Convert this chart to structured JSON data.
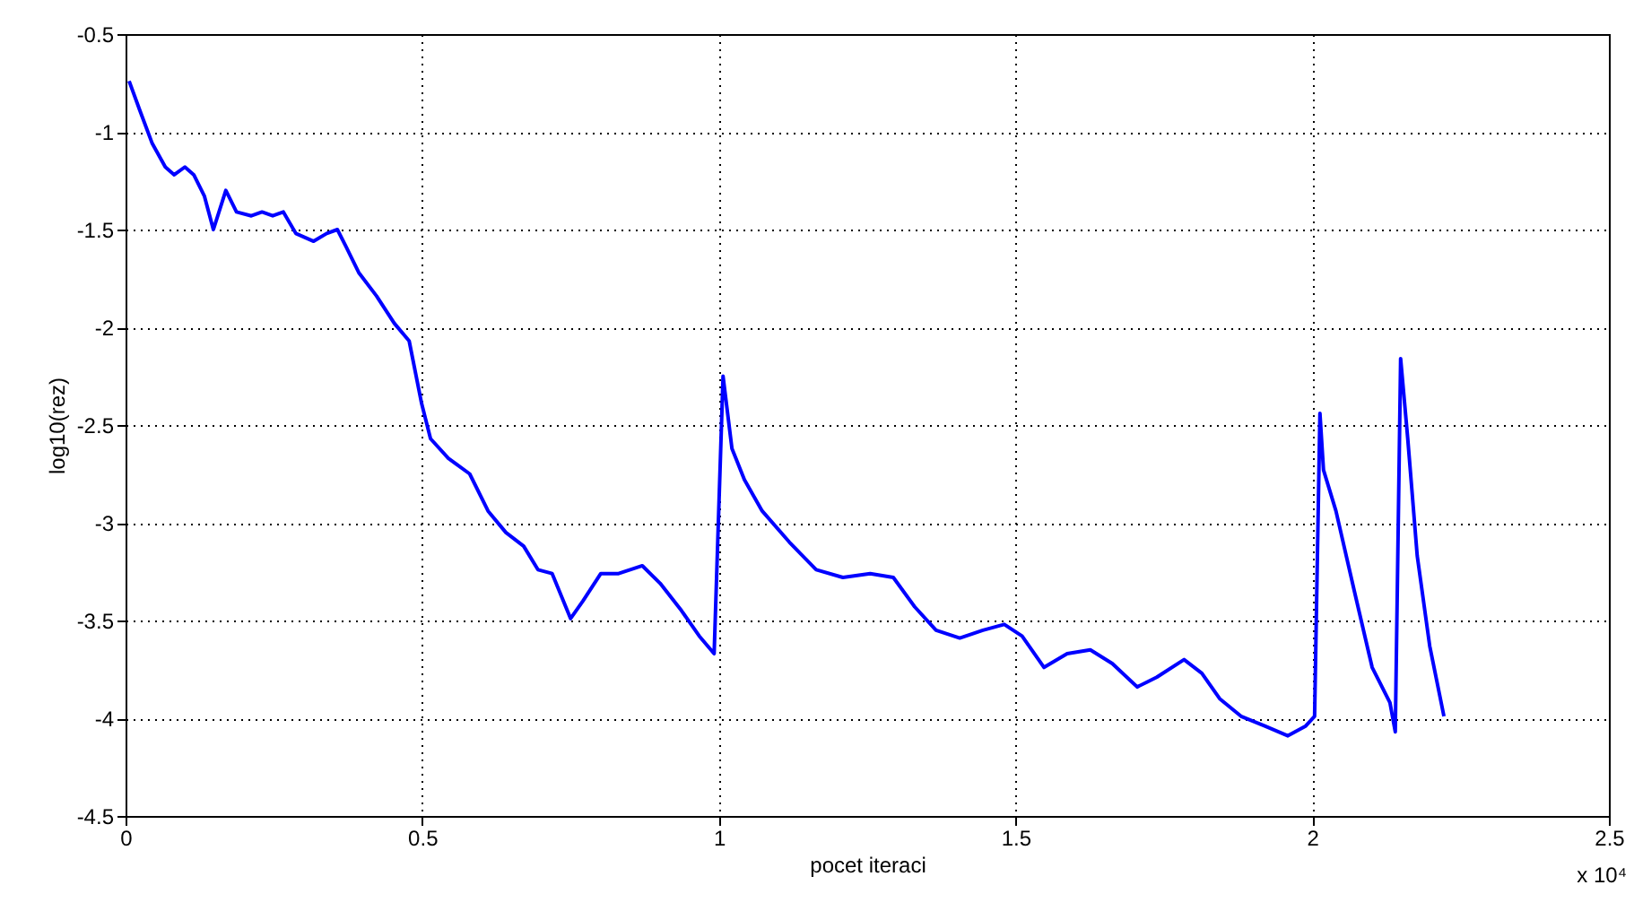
{
  "chart_data": {
    "type": "line",
    "xlabel": "pocet iteraci",
    "ylabel": "log10(rez)",
    "annotations": [
      "x 10⁴"
    ],
    "xlim": [
      0,
      2.5
    ],
    "xticks": [
      0,
      0.5,
      1,
      1.5,
      2,
      2.5
    ],
    "ylim": [
      -4.5,
      -0.5
    ],
    "yticks": [
      -4.5,
      -4,
      -3.5,
      -3,
      -2.5,
      -2,
      -1.5,
      -1,
      -0.5
    ],
    "grid": true,
    "marker": "none",
    "line_style": "solid",
    "series": [
      {
        "color": "#0000ff",
        "x": [
          0.006,
          0.024,
          0.045,
          0.067,
          0.082,
          0.1,
          0.115,
          0.133,
          0.148,
          0.169,
          0.187,
          0.212,
          0.23,
          0.248,
          0.266,
          0.287,
          0.317,
          0.339,
          0.357,
          0.372,
          0.393,
          0.423,
          0.453,
          0.478,
          0.499,
          0.514,
          0.544,
          0.58,
          0.611,
          0.641,
          0.671,
          0.695,
          0.719,
          0.75,
          0.771,
          0.801,
          0.831,
          0.871,
          0.901,
          0.937,
          0.967,
          0.992,
          1.007,
          1.022,
          1.043,
          1.073,
          1.119,
          1.164,
          1.209,
          1.255,
          1.294,
          1.33,
          1.366,
          1.406,
          1.445,
          1.481,
          1.511,
          1.548,
          1.587,
          1.626,
          1.663,
          1.705,
          1.738,
          1.784,
          1.814,
          1.844,
          1.88,
          1.92,
          1.959,
          1.989,
          2.004,
          2.013,
          2.019,
          2.04,
          2.071,
          2.101,
          2.131,
          2.14,
          2.149,
          2.161,
          2.177,
          2.198,
          2.222
        ],
        "values": [
          -0.74,
          -0.89,
          -1.06,
          -1.18,
          -1.22,
          -1.18,
          -1.22,
          -1.33,
          -1.5,
          -1.3,
          -1.41,
          -1.43,
          -1.41,
          -1.43,
          -1.41,
          -1.52,
          -1.56,
          -1.52,
          -1.5,
          -1.59,
          -1.72,
          -1.84,
          -1.98,
          -2.07,
          -2.39,
          -2.57,
          -2.67,
          -2.75,
          -2.94,
          -3.05,
          -3.12,
          -3.24,
          -3.26,
          -3.49,
          -3.4,
          -3.26,
          -3.26,
          -3.22,
          -3.31,
          -3.45,
          -3.58,
          -3.67,
          -2.25,
          -2.62,
          -2.78,
          -2.94,
          -3.1,
          -3.24,
          -3.28,
          -3.26,
          -3.28,
          -3.43,
          -3.55,
          -3.59,
          -3.55,
          -3.52,
          -3.58,
          -3.74,
          -3.67,
          -3.65,
          -3.72,
          -3.84,
          -3.79,
          -3.7,
          -3.77,
          -3.9,
          -3.99,
          -4.04,
          -4.09,
          -4.04,
          -3.99,
          -2.44,
          -2.73,
          -2.94,
          -3.35,
          -3.74,
          -3.92,
          -4.07,
          -2.16,
          -2.57,
          -3.17,
          -3.63,
          -3.99
        ]
      }
    ]
  }
}
